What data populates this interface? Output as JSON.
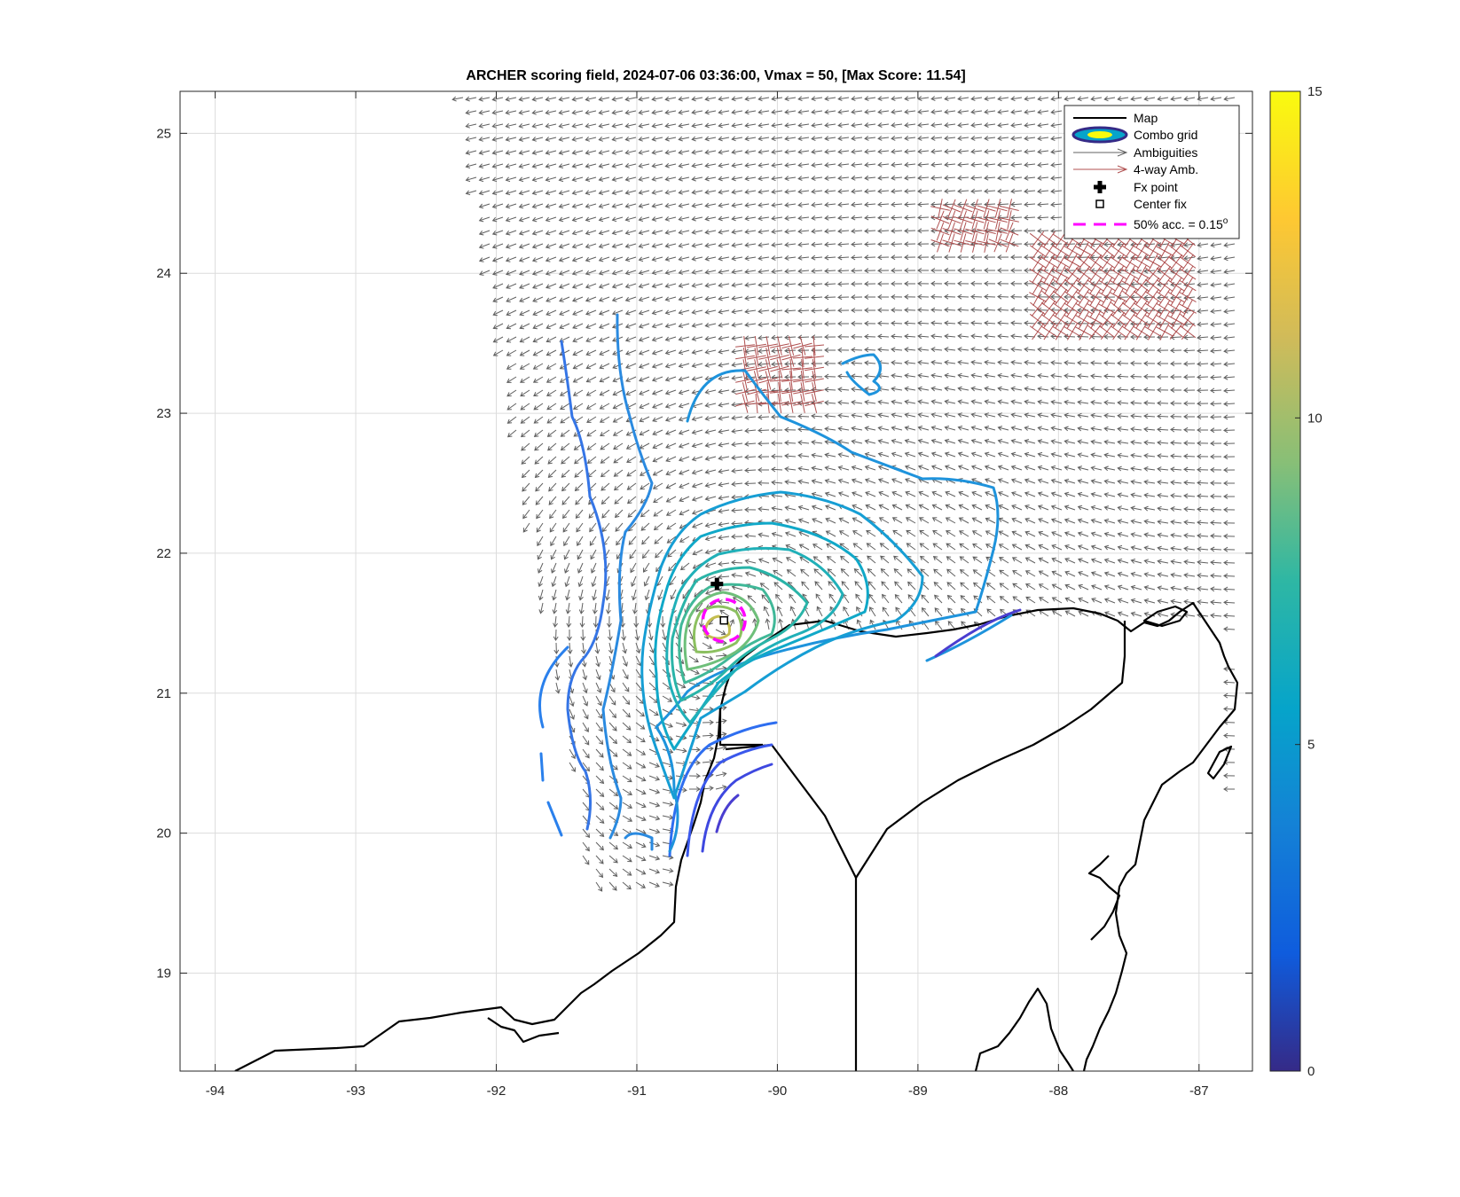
{
  "chart_data": {
    "type": "map",
    "title": "ARCHER scoring field, 2024-07-06 03:36:00, Vmax = 50, [Max Score: 11.54]",
    "xlim": [
      -94.25,
      -86.62
    ],
    "ylim": [
      18.3,
      25.3
    ],
    "x_ticks": [
      "-94",
      "-93",
      "-92",
      "-91",
      "-90",
      "-89",
      "-88",
      "-87"
    ],
    "y_ticks": [
      "19",
      "20",
      "21",
      "22",
      "23",
      "24",
      "25"
    ],
    "grid": true,
    "legend": {
      "placement": "top-right",
      "entries": [
        {
          "label": "Map",
          "key": "map"
        },
        {
          "label": "Combo grid",
          "key": "combo"
        },
        {
          "label": "Ambiguities",
          "key": "amb"
        },
        {
          "label": "4-way Amb.",
          "key": "amb4"
        },
        {
          "label": "Fx point",
          "key": "fx"
        },
        {
          "label": "Center fix",
          "key": "center"
        },
        {
          "label": "50% acc. = 0.15",
          "sup": "o",
          "key": "acc"
        }
      ]
    },
    "colorbar": {
      "min": 0,
      "max": 15,
      "ticks": [
        "0",
        "5",
        "10",
        "15"
      ]
    },
    "fx_point": [
      -90.43,
      21.78
    ],
    "center_fix": [
      -90.38,
      21.52
    ],
    "acc_radius_deg": 0.15,
    "vortex_center": [
      -90.4,
      21.5
    ]
  },
  "colors": {
    "map": "#000000",
    "ambiguity": "#606060",
    "four_way": "#b05050",
    "fix_circle": "#ff00ff"
  }
}
